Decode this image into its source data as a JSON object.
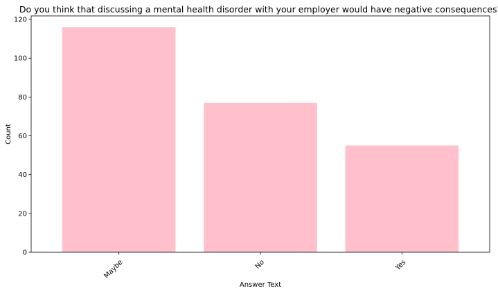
{
  "chart_data": {
    "type": "bar",
    "title": "Do you think that discussing a mental health disorder with your employer would have negative consequences?",
    "xlabel": "Answer Text",
    "ylabel": "Count",
    "categories": [
      "Maybe",
      "No",
      "Yes"
    ],
    "values": [
      116,
      77,
      55
    ],
    "ylim": [
      0,
      121.8
    ],
    "yticks": [
      0,
      20,
      40,
      60,
      80,
      100,
      120
    ],
    "bar_color": "#ffc0cb",
    "grid": false,
    "legend": "none",
    "xtick_rotation_deg": 45
  }
}
